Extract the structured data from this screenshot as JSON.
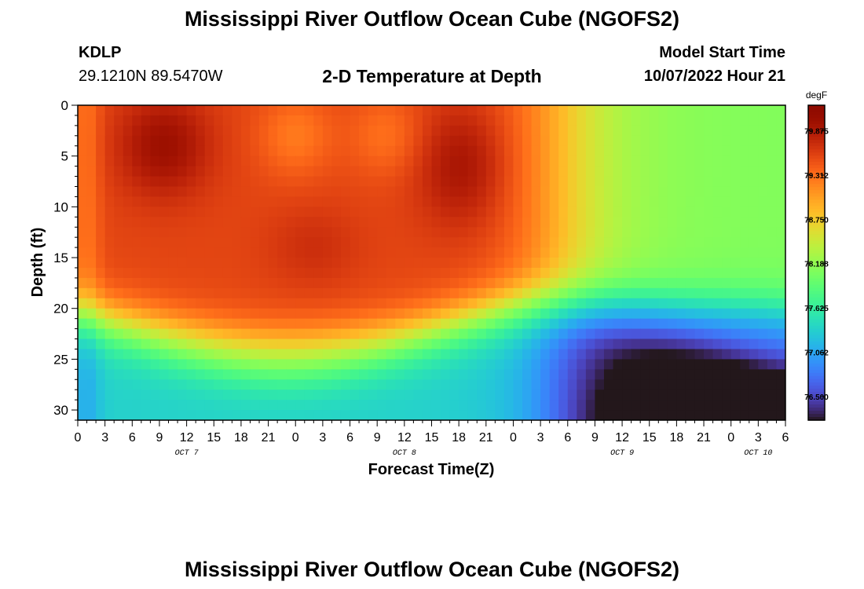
{
  "header": {
    "title": "Mississippi River Outflow Ocean Cube (NGOFS2)",
    "station_id": "KDLP",
    "station_coords": "29.1210N  89.5470W",
    "subtitle": "2-D Temperature at Depth",
    "model_start_label": "Model Start Time",
    "model_start_value": "10/07/2022 Hour 21"
  },
  "footer": {
    "title": "Mississippi River Outflow Ocean Cube (NGOFS2)"
  },
  "chart_data": {
    "type": "heatmap",
    "title": "2-D Temperature at Depth",
    "xlabel": "Forecast Time(Z)",
    "ylabel": "Depth (ft)",
    "x_tick_labels": [
      "0",
      "3",
      "6",
      "9",
      "12",
      "15",
      "18",
      "21",
      "0",
      "3",
      "6",
      "9",
      "12",
      "15",
      "18",
      "21",
      "0",
      "3",
      "6",
      "9",
      "12",
      "15",
      "18",
      "21",
      "0",
      "3",
      "6"
    ],
    "day_labels": [
      {
        "label": "OCT 7",
        "tick_index": 4
      },
      {
        "label": "OCT 8",
        "tick_index": 12
      },
      {
        "label": "OCT 9",
        "tick_index": 20
      },
      {
        "label": "OCT 10",
        "tick_index": 25
      }
    ],
    "x_range_hours": [
      0,
      78
    ],
    "y_ticks": [
      0,
      5,
      10,
      15,
      20,
      25,
      30
    ],
    "y_range_ft": [
      0,
      31
    ],
    "colorbar": {
      "unit": "degF",
      "ticks": [
        79.875,
        79.312,
        78.75,
        78.188,
        77.625,
        77.062,
        76.5
      ],
      "range": [
        76.2,
        80.2
      ],
      "colormap": "turbo"
    },
    "features": [
      {
        "hour": 9.5,
        "depth_ft": 4,
        "temp_degF": 80.1,
        "desc": "warm core"
      },
      {
        "hour": 26,
        "depth_ft": 14,
        "temp_degF": 79.6
      },
      {
        "hour": 42.5,
        "depth_ft": 6,
        "temp_degF": 80.0,
        "desc": "warm core"
      },
      {
        "hour": 63,
        "depth_ft": 8,
        "temp_degF": 78.1,
        "desc": "cool upper layer"
      },
      {
        "hour": 70,
        "depth_ft": 30.5,
        "temp_degF": 76.2,
        "desc": "coldest bottom water"
      }
    ]
  }
}
